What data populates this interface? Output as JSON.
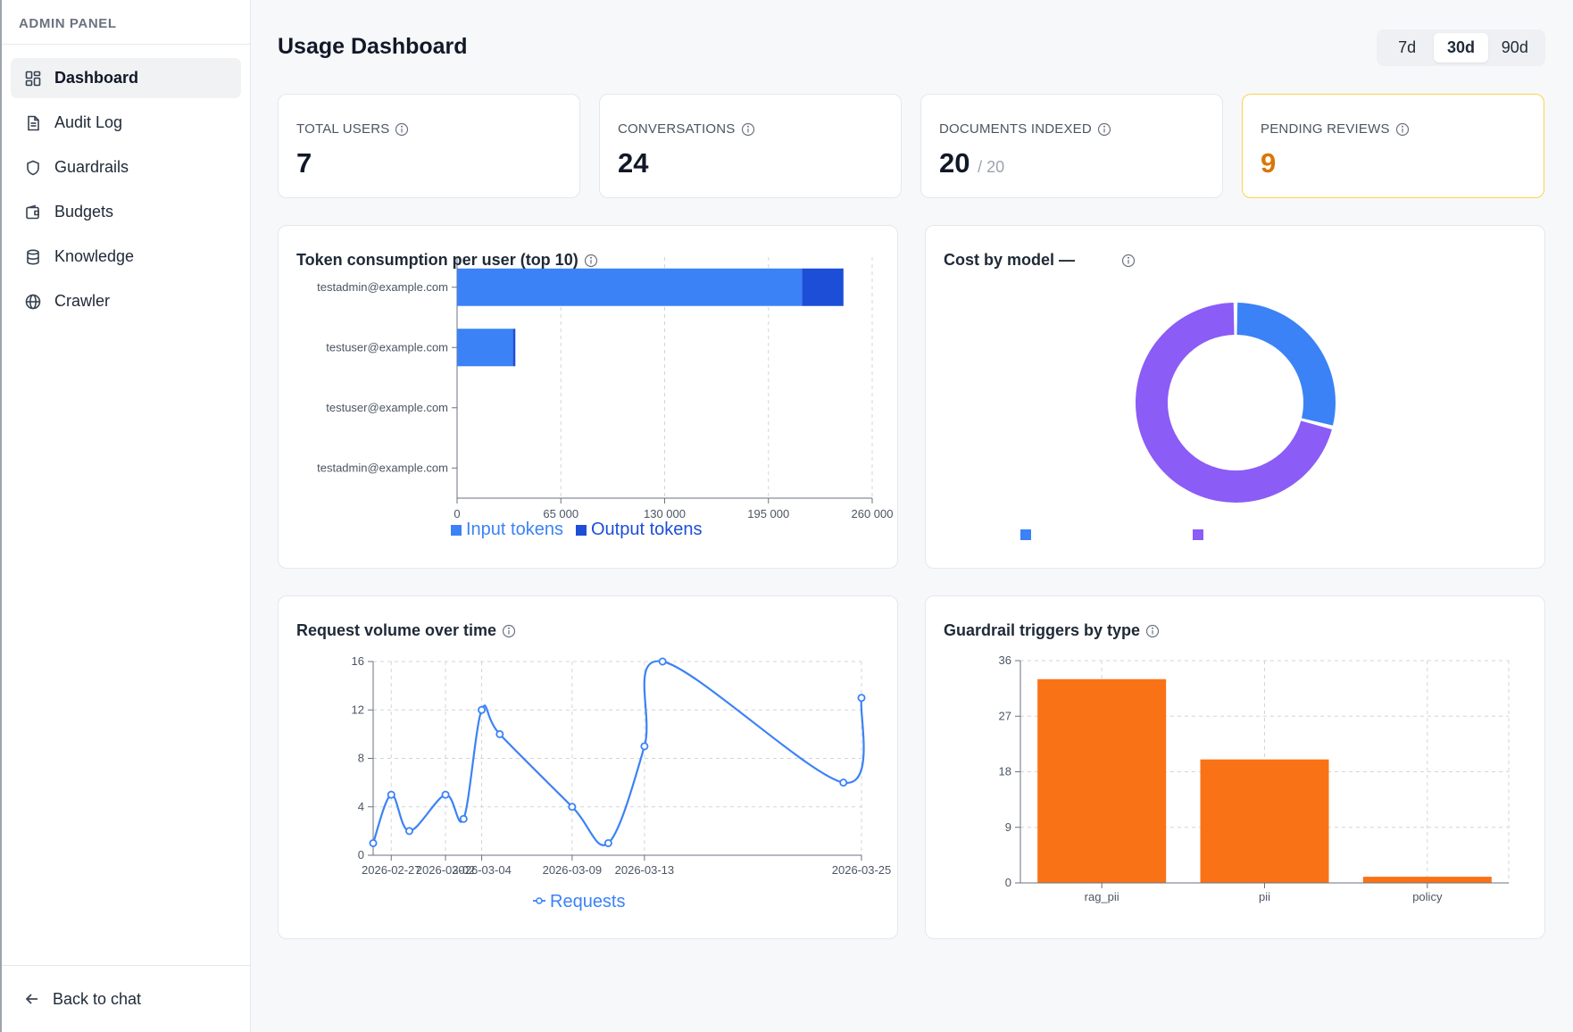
{
  "sidebar": {
    "title": "ADMIN PANEL",
    "items": [
      {
        "label": "Dashboard",
        "icon": "dashboard-icon",
        "active": true
      },
      {
        "label": "Audit Log",
        "icon": "document-icon"
      },
      {
        "label": "Guardrails",
        "icon": "shield-icon"
      },
      {
        "label": "Budgets",
        "icon": "wallet-icon"
      },
      {
        "label": "Knowledge",
        "icon": "database-icon"
      },
      {
        "label": "Crawler",
        "icon": "globe-icon"
      }
    ],
    "footer": {
      "label": "Back to chat",
      "icon": "arrow-left-icon"
    }
  },
  "header": {
    "title": "Usage Dashboard",
    "ranges": [
      "7d",
      "30d",
      "90d"
    ],
    "active_range": "30d"
  },
  "stats": [
    {
      "label": "TOTAL USERS",
      "value": "7"
    },
    {
      "label": "CONVERSATIONS",
      "value": "24"
    },
    {
      "label": "DOCUMENTS INDEXED",
      "value": "20",
      "sub": "/ 20"
    },
    {
      "label": "PENDING REVIEWS",
      "value": "9",
      "color": "#d97706"
    }
  ],
  "colors": {
    "input": "#3b82f6",
    "output": "#1d4ed8",
    "violet": "#8b5cf6",
    "orange": "#f97316",
    "warn_border": "#fcd34d"
  },
  "cards": {
    "tokens_title": "Token consumption per user (top 10)",
    "cost_title": "Cost by model —",
    "requests_title": "Request volume over time",
    "guardrails_title": "Guardrail triggers by type"
  },
  "chart_data": [
    {
      "type": "bar",
      "orientation": "horizontal",
      "stacked": true,
      "title": "Token consumption per user (top 10)",
      "categories": [
        "testadmin@example.com",
        "testuser@example.com",
        "testuser@example.com",
        "testadmin@example.com"
      ],
      "series": [
        {
          "name": "Input tokens",
          "values": [
            216000,
            35000,
            0,
            0
          ]
        },
        {
          "name": "Output tokens",
          "values": [
            26000,
            1500,
            0,
            0
          ]
        }
      ],
      "xticks": [
        "0",
        "65 000",
        "130 000",
        "195 000",
        "260 000"
      ],
      "xlim": [
        0,
        260000
      ],
      "grid": true,
      "legend": "bottom"
    },
    {
      "type": "pie",
      "donut": true,
      "title": "Cost by model —",
      "values": [
        29,
        71
      ],
      "colors": [
        "#3b82f6",
        "#8b5cf6"
      ],
      "legend": "bottom"
    },
    {
      "type": "line",
      "title": "Request volume over time",
      "x": [
        "2026-02-26",
        "2026-02-27",
        "2026-02-28",
        "2026-03-02",
        "2026-03-03",
        "2026-03-04",
        "2026-03-05",
        "2026-03-09",
        "2026-03-11",
        "2026-03-13",
        "2026-03-14",
        "2026-03-24",
        "2026-03-25"
      ],
      "xticks": [
        "2026-02-27",
        "2026-03-02",
        "2026-03-04",
        "2026-03-09",
        "2026-03-13",
        "2026-03-25"
      ],
      "series": [
        {
          "name": "Requests",
          "values": [
            1,
            5,
            2,
            5,
            3,
            12,
            10,
            4,
            1,
            9,
            16,
            6,
            13
          ]
        }
      ],
      "yticks": [
        "0",
        "4",
        "8",
        "12",
        "16"
      ],
      "ylim": [
        0,
        16
      ],
      "grid": true,
      "legend": "bottom"
    },
    {
      "type": "bar",
      "title": "Guardrail triggers by type",
      "categories": [
        "rag_pii",
        "pii",
        "policy"
      ],
      "values": [
        33,
        20,
        1
      ],
      "yticks": [
        "0",
        "9",
        "18",
        "27",
        "36"
      ],
      "ylim": [
        0,
        36
      ],
      "grid": true
    }
  ]
}
